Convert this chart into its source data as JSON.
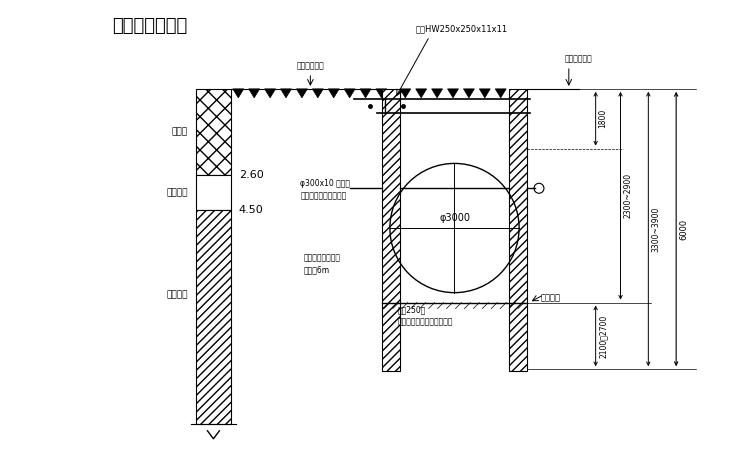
{
  "title": "钻孔剖面示意图",
  "bg_color": "#ffffff",
  "line_color": "#000000",
  "soil1": "素填土",
  "soil2": "细砂层土",
  "soil3": "粉质粘土",
  "depth1": "2.60",
  "depth2": "4.50",
  "beam_label": "钢梁HW250x250x11x11",
  "ground_label1": "原有地面标板",
  "ground_label2": "原有地面标板",
  "pipe_label1": "φ300x10 钢管管",
  "pipe_label2": "锚杆与钢板桩采用焊接",
  "pipe_size": "φ3000",
  "pile_label": "桩径250厘",
  "pile_note": "基础开挖后在管道之间列桩",
  "anchor_label": "自备固厚钢框拦桩",
  "anchor_note": "桩长约6m",
  "bottom_label": "开挖底面",
  "dim1": "1800",
  "dim2": "2300~2900",
  "dim3": "3300~3900",
  "dim4": "2100～2700",
  "dim5": "6000",
  "fig_width": 7.4,
  "fig_height": 4.67,
  "dpi": 100
}
